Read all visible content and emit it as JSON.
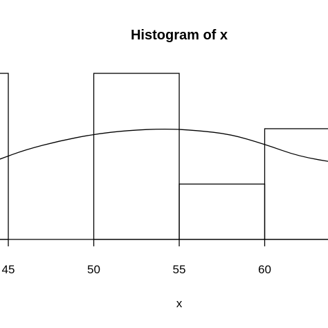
{
  "chart_data": {
    "type": "bar",
    "title": "Histogram of x",
    "xlabel": "x",
    "ylabel": "",
    "bins": [
      {
        "from": 40,
        "to": 45,
        "count": 3
      },
      {
        "from": 45,
        "to": 50,
        "count": 0
      },
      {
        "from": 50,
        "to": 55,
        "count": 3
      },
      {
        "from": 55,
        "to": 60,
        "count": 1
      },
      {
        "from": 60,
        "to": 65,
        "count": 2
      }
    ],
    "x_ticks": [
      45,
      50,
      55,
      60
    ],
    "xlim": [
      44.5,
      64.3
    ],
    "ylim": [
      0,
      3
    ],
    "density_curve": {
      "label": "",
      "points": [
        [
          44.5,
          1.45
        ],
        [
          46,
          1.62
        ],
        [
          48,
          1.78
        ],
        [
          50,
          1.9
        ],
        [
          52,
          1.97
        ],
        [
          54.2,
          2.0
        ],
        [
          56,
          1.97
        ],
        [
          58,
          1.9
        ],
        [
          60,
          1.72
        ],
        [
          62,
          1.5
        ],
        [
          64.3,
          1.38
        ]
      ]
    },
    "grid": false,
    "legend": "none",
    "colors": {
      "line": "#000000",
      "background": "#ffffff"
    }
  }
}
